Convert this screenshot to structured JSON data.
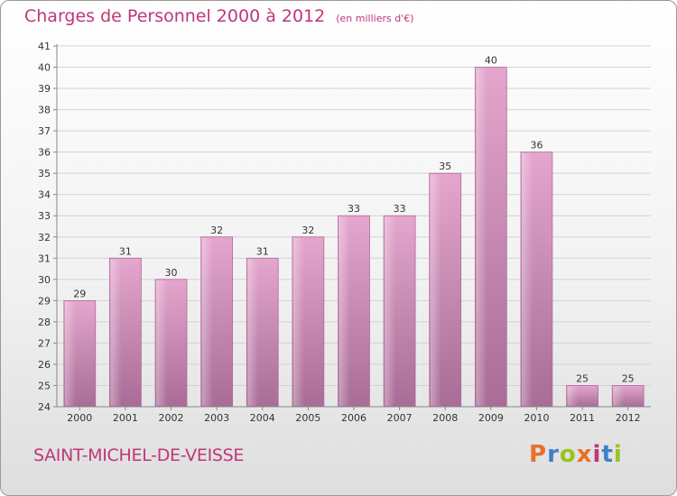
{
  "header": {
    "title": "Charges de Personnel 2000 à 2012",
    "subtitle": "(en milliers d'€)"
  },
  "footer": {
    "place": "SAINT-MICHEL-DE-VEISSE",
    "logo": "Proxiti",
    "logo_colors": [
      "#e8702a",
      "#3f7fc9",
      "#9ac31c",
      "#e8702a",
      "#c0367a",
      "#3f7fc9",
      "#9ac31c"
    ]
  },
  "colors": {
    "title": "#c0367a",
    "bar_top": "#e4a6cd",
    "bar_bottom": "#a86c96"
  },
  "chart_data": {
    "type": "bar",
    "categories": [
      "2000",
      "2001",
      "2002",
      "2003",
      "2004",
      "2005",
      "2006",
      "2007",
      "2008",
      "2009",
      "2010",
      "2011",
      "2012"
    ],
    "values": [
      29,
      31,
      30,
      32,
      31,
      32,
      33,
      33,
      35,
      40,
      36,
      25,
      25
    ],
    "ylim": [
      24,
      41
    ],
    "yticks": [
      24,
      25,
      26,
      27,
      28,
      29,
      30,
      31,
      32,
      33,
      34,
      35,
      36,
      37,
      38,
      39,
      40,
      41
    ],
    "grid": true,
    "data_labels": true
  }
}
